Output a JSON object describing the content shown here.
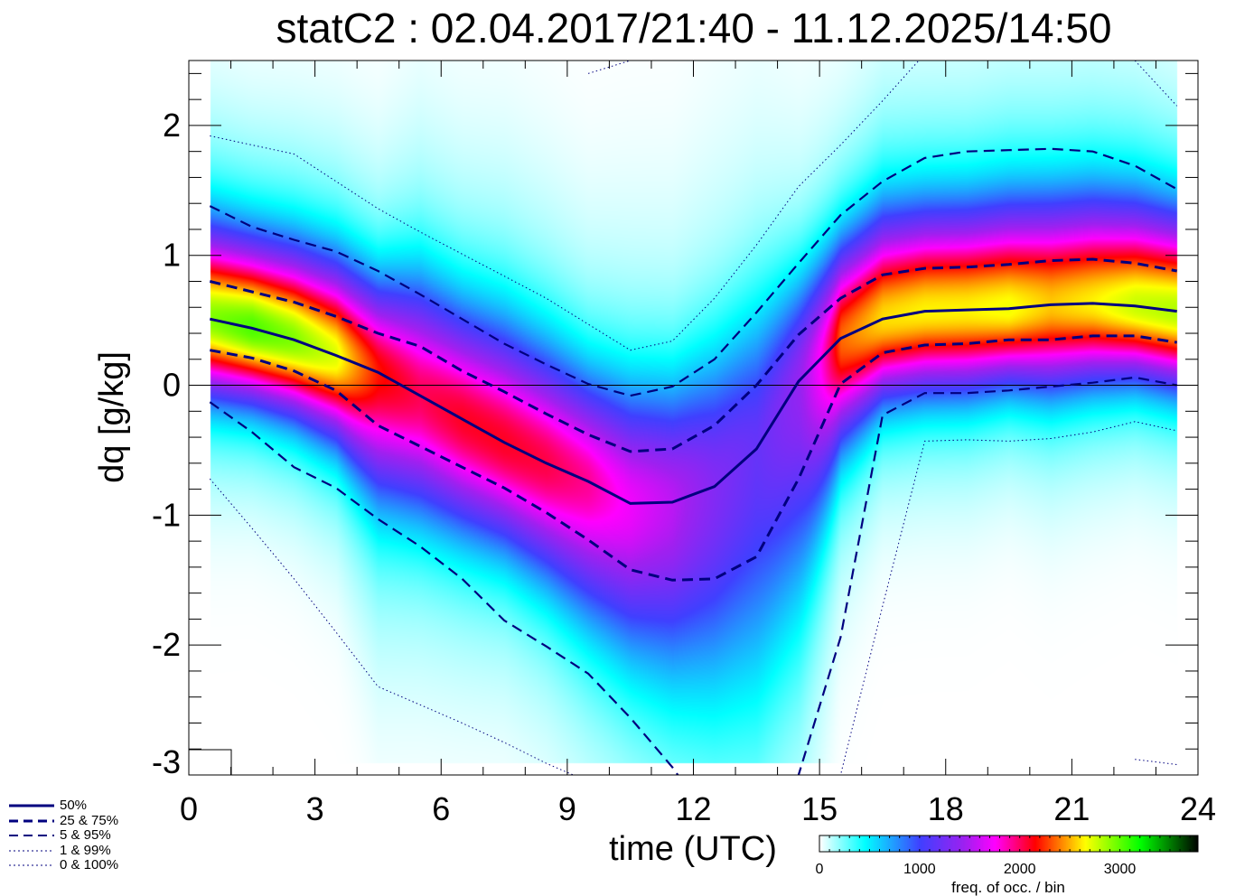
{
  "chart_data": {
    "type": "heatmap",
    "title": "statC2 : 02.04.2017/21:40 - 11.12.2025/14:50",
    "xlabel": "time (UTC)",
    "ylabel": "dq [g/kg]",
    "xlim": [
      0,
      24
    ],
    "ylim": [
      -3,
      2.5
    ],
    "xticks": [
      0,
      3,
      6,
      9,
      12,
      15,
      18,
      21,
      24
    ],
    "yticks": [
      -3,
      -2,
      -1,
      0,
      1,
      2
    ],
    "grid": false,
    "x": [
      0.5,
      1.5,
      2.5,
      3.5,
      4.5,
      5.5,
      6.5,
      7.5,
      8.5,
      9.5,
      10.5,
      11.5,
      12.5,
      13.5,
      14.5,
      15.5,
      16.5,
      17.5,
      18.5,
      19.5,
      20.5,
      21.5,
      22.5,
      23.5
    ],
    "series": [
      {
        "name": "50%",
        "style": "solid",
        "values": [
          0.51,
          0.44,
          0.35,
          0.23,
          0.1,
          -0.08,
          -0.26,
          -0.44,
          -0.6,
          -0.74,
          -0.91,
          -0.9,
          -0.78,
          -0.49,
          0.03,
          0.36,
          0.51,
          0.57,
          0.58,
          0.59,
          0.62,
          0.63,
          0.61,
          0.57
        ]
      },
      {
        "name": "25%",
        "style": "dashed",
        "values": [
          0.27,
          0.21,
          0.11,
          -0.04,
          -0.31,
          -0.47,
          -0.63,
          -0.79,
          -0.98,
          -1.19,
          -1.42,
          -1.5,
          -1.49,
          -1.32,
          -0.72,
          0.01,
          0.25,
          0.31,
          0.32,
          0.35,
          0.35,
          0.38,
          0.38,
          0.33
        ]
      },
      {
        "name": "75%",
        "style": "dashed",
        "values": [
          0.8,
          0.72,
          0.64,
          0.53,
          0.4,
          0.3,
          0.11,
          -0.05,
          -0.22,
          -0.38,
          -0.51,
          -0.49,
          -0.31,
          0.0,
          0.39,
          0.67,
          0.85,
          0.9,
          0.91,
          0.93,
          0.96,
          0.97,
          0.94,
          0.88
        ]
      },
      {
        "name": "5%",
        "style": "dashed-thin",
        "values": [
          -0.13,
          -0.36,
          -0.63,
          -0.79,
          -1.03,
          -1.24,
          -1.49,
          -1.81,
          -2.01,
          -2.22,
          -2.56,
          -2.94,
          -3.4,
          -3.4,
          -3.0,
          -1.94,
          -0.23,
          -0.06,
          -0.06,
          -0.04,
          -0.01,
          0.02,
          0.06,
          0.0
        ]
      },
      {
        "name": "95%",
        "style": "dashed-thin",
        "values": [
          1.38,
          1.22,
          1.12,
          1.03,
          0.88,
          0.7,
          0.51,
          0.32,
          0.16,
          0.01,
          -0.08,
          -0.01,
          0.2,
          0.56,
          0.94,
          1.31,
          1.57,
          1.75,
          1.8,
          1.81,
          1.82,
          1.8,
          1.69,
          1.51
        ]
      },
      {
        "name": "1%",
        "style": "dotted",
        "values": [
          -0.72,
          -1.1,
          -1.49,
          -1.9,
          -2.32,
          -2.46,
          -2.6,
          -2.75,
          -2.91,
          -3.05,
          -3.2,
          -3.3,
          -3.3,
          -3.3,
          -3.2,
          -3.0,
          -1.7,
          -0.43,
          -0.42,
          -0.43,
          -0.41,
          -0.36,
          -0.28,
          -0.35
        ]
      },
      {
        "name": "99%",
        "style": "dotted",
        "values": [
          1.92,
          1.85,
          1.78,
          1.57,
          1.36,
          1.18,
          1.01,
          0.84,
          0.67,
          0.47,
          0.27,
          0.34,
          0.67,
          1.08,
          1.53,
          1.85,
          2.19,
          2.55,
          2.7,
          2.8,
          2.8,
          2.8,
          2.7,
          2.6
        ]
      },
      {
        "name": "0%",
        "style": "dotted",
        "values": [
          null,
          null,
          null,
          null,
          null,
          null,
          null,
          null,
          null,
          null,
          null,
          null,
          null,
          null,
          null,
          null,
          null,
          null,
          null,
          null,
          null,
          null,
          -2.88,
          -2.92
        ]
      },
      {
        "name": "100%",
        "style": "dotted",
        "values": [
          null,
          null,
          null,
          null,
          null,
          null,
          null,
          null,
          null,
          2.4,
          2.5,
          null,
          null,
          null,
          null,
          null,
          null,
          null,
          null,
          null,
          null,
          null,
          2.5,
          2.15
        ]
      }
    ],
    "legend": [
      "50%",
      "25 &  75%",
      "5 &  95%",
      "1 &  99%",
      "0 & 100%"
    ],
    "legend_placement": "bottom-left",
    "colorbar": {
      "label": "freq. of occ. / bin",
      "ticks": [
        0,
        1000,
        2000,
        3000
      ],
      "range": [
        0,
        3780
      ],
      "colors": [
        "#ffffff",
        "#00ffff",
        "#4040ff",
        "#a020f0",
        "#ff00ff",
        "#ff0000",
        "#ffff00",
        "#00ff00",
        "#000000"
      ]
    },
    "line_color": "#00007f"
  }
}
